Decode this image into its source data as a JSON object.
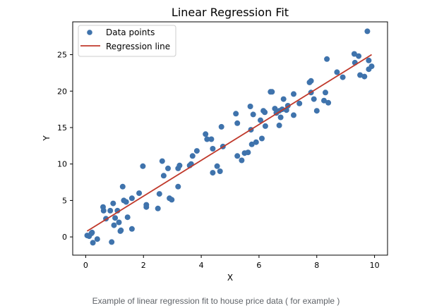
{
  "chart_data": {
    "type": "scatter",
    "title": "Linear Regression Fit",
    "xlabel": "X",
    "ylabel": "Y",
    "xlim": [
      -0.45,
      10.45
    ],
    "ylim": [
      -2.5,
      29.5
    ],
    "xticks": [
      0,
      2,
      4,
      6,
      8,
      10
    ],
    "yticks": [
      0,
      5,
      10,
      15,
      20,
      25
    ],
    "grid": false,
    "legend": {
      "placement": "top-left",
      "entries": [
        "Data points",
        "Regression line"
      ]
    },
    "series": [
      {
        "name": "Data points",
        "kind": "scatter",
        "color": "#3f73ac",
        "points": [
          [
            0.05,
            0.2
          ],
          [
            0.12,
            0.1
          ],
          [
            0.2,
            0.5
          ],
          [
            0.22,
            0.6
          ],
          [
            0.25,
            -0.8
          ],
          [
            0.4,
            -0.3
          ],
          [
            0.6,
            4.1
          ],
          [
            0.62,
            3.6
          ],
          [
            0.7,
            2.5
          ],
          [
            0.85,
            3.6
          ],
          [
            0.9,
            -0.7
          ],
          [
            0.95,
            4.6
          ],
          [
            0.98,
            1.6
          ],
          [
            1.02,
            2.6
          ],
          [
            1.1,
            3.6
          ],
          [
            1.15,
            2.0
          ],
          [
            1.2,
            0.8
          ],
          [
            1.22,
            0.9
          ],
          [
            1.28,
            6.9
          ],
          [
            1.32,
            5.0
          ],
          [
            1.4,
            4.8
          ],
          [
            1.45,
            2.7
          ],
          [
            1.6,
            5.3
          ],
          [
            1.6,
            1.1
          ],
          [
            1.85,
            6.0
          ],
          [
            1.98,
            9.7
          ],
          [
            2.1,
            4.4
          ],
          [
            2.1,
            4.1
          ],
          [
            2.5,
            3.9
          ],
          [
            2.55,
            5.9
          ],
          [
            2.65,
            10.4
          ],
          [
            2.7,
            8.4
          ],
          [
            2.85,
            9.4
          ],
          [
            2.9,
            5.3
          ],
          [
            2.98,
            5.1
          ],
          [
            3.2,
            9.4
          ],
          [
            3.2,
            6.9
          ],
          [
            3.25,
            9.8
          ],
          [
            3.6,
            9.8
          ],
          [
            3.65,
            10.0
          ],
          [
            3.7,
            11.1
          ],
          [
            3.85,
            11.8
          ],
          [
            4.15,
            14.1
          ],
          [
            4.2,
            13.4
          ],
          [
            4.35,
            13.4
          ],
          [
            4.4,
            12.1
          ],
          [
            4.4,
            8.8
          ],
          [
            4.55,
            9.7
          ],
          [
            4.65,
            9.0
          ],
          [
            4.7,
            15.1
          ],
          [
            4.75,
            12.4
          ],
          [
            5.2,
            16.9
          ],
          [
            5.25,
            15.6
          ],
          [
            5.25,
            11.1
          ],
          [
            5.4,
            10.5
          ],
          [
            5.5,
            11.5
          ],
          [
            5.62,
            11.6
          ],
          [
            5.7,
            17.9
          ],
          [
            5.72,
            14.7
          ],
          [
            5.75,
            12.7
          ],
          [
            5.8,
            16.8
          ],
          [
            5.9,
            13.0
          ],
          [
            6.05,
            16.0
          ],
          [
            6.1,
            13.5
          ],
          [
            6.15,
            17.3
          ],
          [
            6.2,
            17.1
          ],
          [
            6.22,
            15.2
          ],
          [
            6.4,
            19.9
          ],
          [
            6.45,
            19.9
          ],
          [
            6.55,
            17.6
          ],
          [
            6.6,
            17.0
          ],
          [
            6.7,
            17.3
          ],
          [
            6.75,
            16.4
          ],
          [
            6.8,
            17.5
          ],
          [
            6.7,
            15.3
          ],
          [
            6.85,
            18.9
          ],
          [
            6.95,
            17.4
          ],
          [
            7.0,
            18.0
          ],
          [
            7.2,
            19.6
          ],
          [
            7.2,
            16.7
          ],
          [
            7.4,
            18.3
          ],
          [
            7.75,
            21.2
          ],
          [
            7.8,
            21.4
          ],
          [
            7.8,
            19.8
          ],
          [
            7.9,
            18.9
          ],
          [
            8.0,
            17.3
          ],
          [
            8.25,
            18.7
          ],
          [
            8.3,
            19.8
          ],
          [
            8.35,
            24.4
          ],
          [
            8.4,
            18.4
          ],
          [
            8.7,
            22.6
          ],
          [
            8.9,
            21.9
          ],
          [
            9.3,
            25.1
          ],
          [
            9.32,
            23.9
          ],
          [
            9.45,
            24.8
          ],
          [
            9.5,
            22.2
          ],
          [
            9.65,
            22.0
          ],
          [
            9.75,
            28.2
          ],
          [
            9.8,
            23.0
          ],
          [
            9.8,
            24.2
          ],
          [
            9.9,
            23.4
          ]
        ]
      },
      {
        "name": "Regression line",
        "kind": "line",
        "color": "#c0392b",
        "points": [
          [
            0.05,
            0.8
          ],
          [
            9.9,
            25.0
          ]
        ]
      }
    ]
  },
  "caption": "Example of linear regression fit to house price data ( for example )"
}
